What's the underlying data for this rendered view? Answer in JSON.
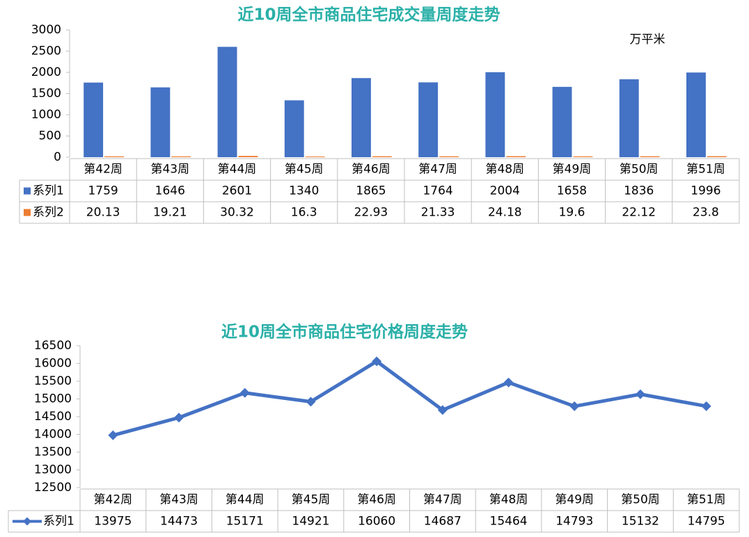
{
  "chart_data": [
    {
      "type": "bar",
      "title": "近10周全市商品住宅成交量周度走势",
      "unit": "万平米",
      "categories": [
        "第42周",
        "第43周",
        "第44周",
        "第45周",
        "第46周",
        "第47周",
        "第48周",
        "第49周",
        "第50周",
        "第51周"
      ],
      "series": [
        {
          "name": "系列1",
          "color": "#4472c4",
          "values": [
            1759,
            1646,
            2601,
            1340,
            1865,
            1764,
            2004,
            1658,
            1836,
            1996
          ]
        },
        {
          "name": "系列2",
          "color": "#ed7d31",
          "values": [
            20.13,
            19.21,
            30.32,
            16.3,
            22.93,
            21.33,
            24.18,
            19.6,
            22.12,
            23.8
          ]
        }
      ],
      "ylim": [
        0,
        3000
      ],
      "yticks": [
        0,
        500,
        1000,
        1500,
        2000,
        2500,
        3000
      ],
      "grid": false
    },
    {
      "type": "line",
      "title": "近10周全市商品住宅价格周度走势",
      "categories": [
        "第42周",
        "第43周",
        "第44周",
        "第45周",
        "第46周",
        "第47周",
        "第48周",
        "第49周",
        "第50周",
        "第51周"
      ],
      "series": [
        {
          "name": "系列1",
          "color": "#4472c4",
          "values": [
            13975,
            14473,
            15171,
            14921,
            16060,
            14687,
            15464,
            14793,
            15132,
            14795
          ]
        }
      ],
      "ylim": [
        12500,
        16500
      ],
      "yticks": [
        12500,
        13000,
        13500,
        14000,
        14500,
        15000,
        15500,
        16000,
        16500
      ],
      "grid": false
    }
  ]
}
